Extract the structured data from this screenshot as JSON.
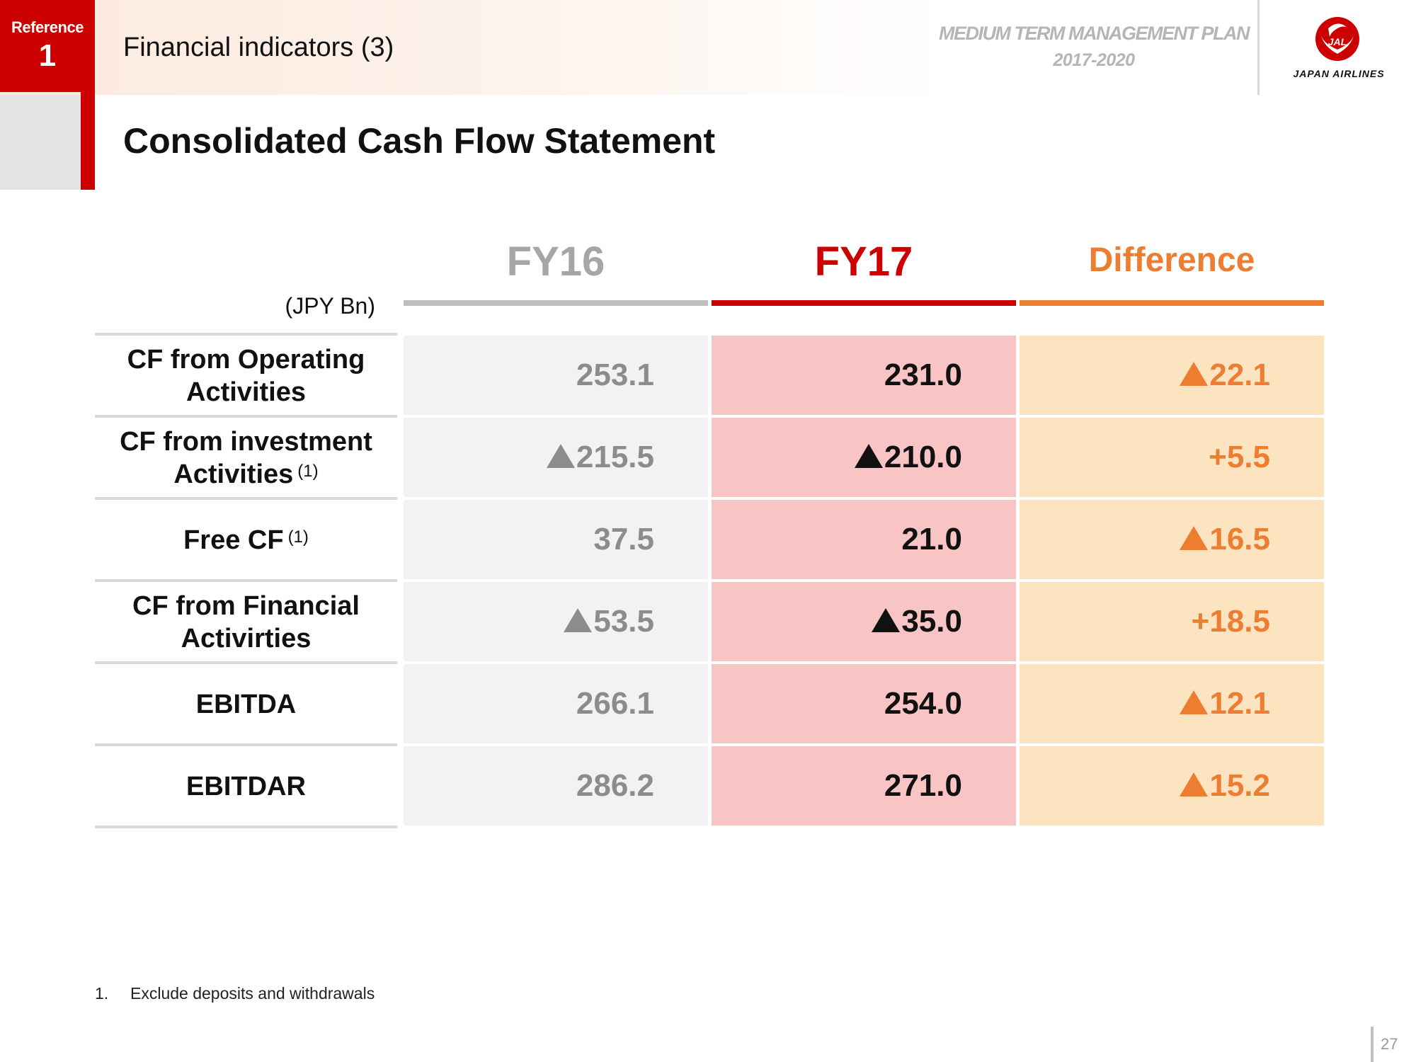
{
  "header": {
    "reference_label": "Reference",
    "reference_number": "1",
    "section_title": "Financial indicators (3)",
    "plan_line1": "MEDIUM TERM MANAGEMENT PLAN",
    "plan_line2": "2017-2020",
    "logo_monogram": "JAL",
    "logo_text": "JAPAN AIRLINES",
    "colors": {
      "brand_red": "#cc0000",
      "accent_orange": "#ed7d31",
      "grey": "#a6a6a6"
    }
  },
  "page_title": "Consolidated Cash Flow Statement",
  "table": {
    "unit": "(JPY Bn)",
    "columns": [
      "FY16",
      "FY17",
      "Difference"
    ],
    "rows": [
      {
        "label_line1": "CF from Operating",
        "label_line2": "Activities",
        "note": "",
        "fy16": "253.1",
        "fy16_neg": false,
        "fy17": "231.0",
        "fy17_neg": false,
        "diff": "22.1",
        "diff_neg": true
      },
      {
        "label_line1": "CF from investment",
        "label_line2": "Activities",
        "note": "(1)",
        "fy16": "215.5",
        "fy16_neg": true,
        "fy17": "210.0",
        "fy17_neg": true,
        "diff": "+5.5",
        "diff_neg": false
      },
      {
        "label_line1": "Free CF",
        "label_line2": "",
        "note": "(1)",
        "fy16": "37.5",
        "fy16_neg": false,
        "fy17": "21.0",
        "fy17_neg": false,
        "diff": "16.5",
        "diff_neg": true
      },
      {
        "label_line1": "CF from Financial",
        "label_line2": "Activirties",
        "note": "",
        "fy16": "53.5",
        "fy16_neg": true,
        "fy17": "35.0",
        "fy17_neg": true,
        "diff": "+18.5",
        "diff_neg": false
      },
      {
        "label_line1": "EBITDA",
        "label_line2": "",
        "note": "",
        "fy16": "266.1",
        "fy16_neg": false,
        "fy17": "254.0",
        "fy17_neg": false,
        "diff": "12.1",
        "diff_neg": true
      },
      {
        "label_line1": "EBITDAR",
        "label_line2": "",
        "note": "",
        "fy16": "286.2",
        "fy16_neg": false,
        "fy17": "271.0",
        "fy17_neg": false,
        "diff": "15.2",
        "diff_neg": true
      }
    ]
  },
  "footnote": {
    "number": "1.",
    "text": "Exclude deposits and withdrawals"
  },
  "page_number": "27"
}
